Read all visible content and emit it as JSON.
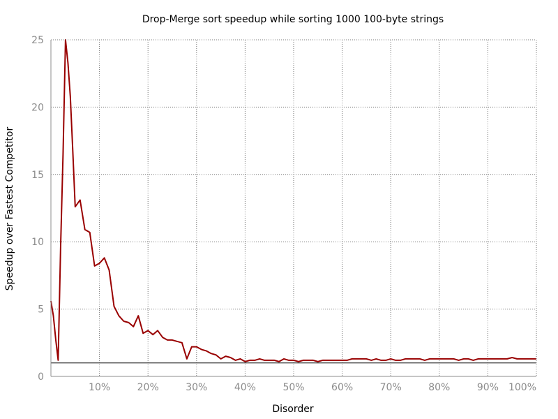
{
  "chart_data": {
    "type": "line",
    "title": "Drop-Merge sort speedup while sorting 1000 100-byte strings",
    "xlabel": "Disorder",
    "ylabel": "Speedup over Fastest Competitor",
    "xlim": [
      0,
      100
    ],
    "ylim": [
      0,
      25
    ],
    "x_ticks": [
      {
        "value": 10,
        "label": "10%"
      },
      {
        "value": 20,
        "label": "20%"
      },
      {
        "value": 30,
        "label": "30%"
      },
      {
        "value": 40,
        "label": "40%"
      },
      {
        "value": 50,
        "label": "50%"
      },
      {
        "value": 60,
        "label": "60%"
      },
      {
        "value": 70,
        "label": "70%"
      },
      {
        "value": 80,
        "label": "80%"
      },
      {
        "value": 90,
        "label": "90%"
      },
      {
        "value": 100,
        "label": "100%"
      }
    ],
    "y_ticks": [
      {
        "value": 0,
        "label": "0"
      },
      {
        "value": 5,
        "label": "5"
      },
      {
        "value": 10,
        "label": "10"
      },
      {
        "value": 15,
        "label": "15"
      },
      {
        "value": 20,
        "label": "20"
      },
      {
        "value": 25,
        "label": "25"
      }
    ],
    "grid": true,
    "reference_line": {
      "y": 1,
      "color": "#000000"
    },
    "series": [
      {
        "color": "#990000",
        "x": [
          0,
          0.5,
          1,
          1.5,
          2,
          2.5,
          3,
          3.5,
          4,
          4.5,
          5,
          6,
          7,
          8,
          9,
          10,
          11,
          12,
          13,
          14,
          15,
          16,
          17,
          18,
          19,
          20,
          21,
          22,
          23,
          24,
          25,
          26,
          27,
          28,
          29,
          30,
          31,
          32,
          33,
          34,
          35,
          36,
          37,
          38,
          39,
          40,
          41,
          42,
          43,
          44,
          45,
          46,
          47,
          48,
          49,
          50,
          51,
          52,
          53,
          54,
          55,
          56,
          57,
          58,
          59,
          60,
          61,
          62,
          63,
          64,
          65,
          66,
          67,
          68,
          69,
          70,
          71,
          72,
          73,
          74,
          75,
          76,
          77,
          78,
          79,
          80,
          81,
          82,
          83,
          84,
          85,
          86,
          87,
          88,
          89,
          90,
          91,
          92,
          93,
          94,
          95,
          96,
          97,
          98,
          99,
          100
        ],
        "y": [
          5.6,
          4.5,
          2.7,
          1.2,
          9.6,
          16.5,
          25,
          23.3,
          20.8,
          16.8,
          12.6,
          13.1,
          10.9,
          10.7,
          8.2,
          8.4,
          8.8,
          7.9,
          5.2,
          4.5,
          4.1,
          4.0,
          3.7,
          4.5,
          3.2,
          3.4,
          3.1,
          3.4,
          2.9,
          2.7,
          2.7,
          2.6,
          2.5,
          1.3,
          2.2,
          2.2,
          2.0,
          1.9,
          1.7,
          1.6,
          1.3,
          1.5,
          1.4,
          1.2,
          1.3,
          1.1,
          1.2,
          1.2,
          1.3,
          1.2,
          1.2,
          1.2,
          1.1,
          1.3,
          1.2,
          1.2,
          1.1,
          1.2,
          1.2,
          1.2,
          1.1,
          1.2,
          1.2,
          1.2,
          1.2,
          1.2,
          1.2,
          1.3,
          1.3,
          1.3,
          1.3,
          1.2,
          1.3,
          1.2,
          1.2,
          1.3,
          1.2,
          1.2,
          1.3,
          1.3,
          1.3,
          1.3,
          1.2,
          1.3,
          1.3,
          1.3,
          1.3,
          1.3,
          1.3,
          1.2,
          1.3,
          1.3,
          1.2,
          1.3,
          1.3,
          1.3,
          1.3,
          1.3,
          1.3,
          1.3,
          1.4,
          1.3,
          1.3,
          1.3,
          1.3,
          1.3
        ]
      }
    ]
  }
}
